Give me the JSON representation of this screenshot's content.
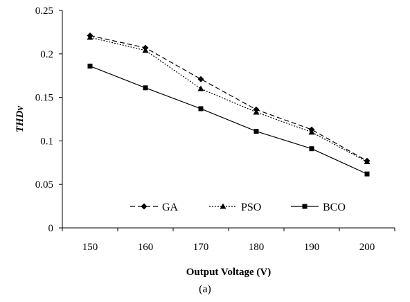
{
  "chart_data": {
    "type": "line",
    "xlabel": "Output Voltage (V)",
    "ylabel": "THDv",
    "caption": "(a)",
    "x": [
      150,
      160,
      170,
      180,
      190,
      200
    ],
    "xlim": [
      145,
      205
    ],
    "ylim": [
      0,
      0.25
    ],
    "yticks": [
      "0",
      "0.05",
      "0.1",
      "0.15",
      "0.2",
      "0.25"
    ],
    "xticks": [
      "150",
      "160",
      "170",
      "180",
      "190",
      "200"
    ],
    "grid": false,
    "legend_position": "bottom-center",
    "series": [
      {
        "name": "GA",
        "marker": "diamond",
        "line": "dashed",
        "values": [
          0.221,
          0.207,
          0.171,
          0.136,
          0.113,
          0.077
        ]
      },
      {
        "name": "PSO",
        "marker": "triangle",
        "line": "dotted",
        "values": [
          0.219,
          0.204,
          0.16,
          0.133,
          0.11,
          0.076
        ]
      },
      {
        "name": "BCO",
        "marker": "square",
        "line": "solid",
        "values": [
          0.186,
          0.161,
          0.137,
          0.111,
          0.091,
          0.062
        ]
      }
    ],
    "colors": {
      "line": "#000000",
      "axis": "#000000"
    }
  }
}
